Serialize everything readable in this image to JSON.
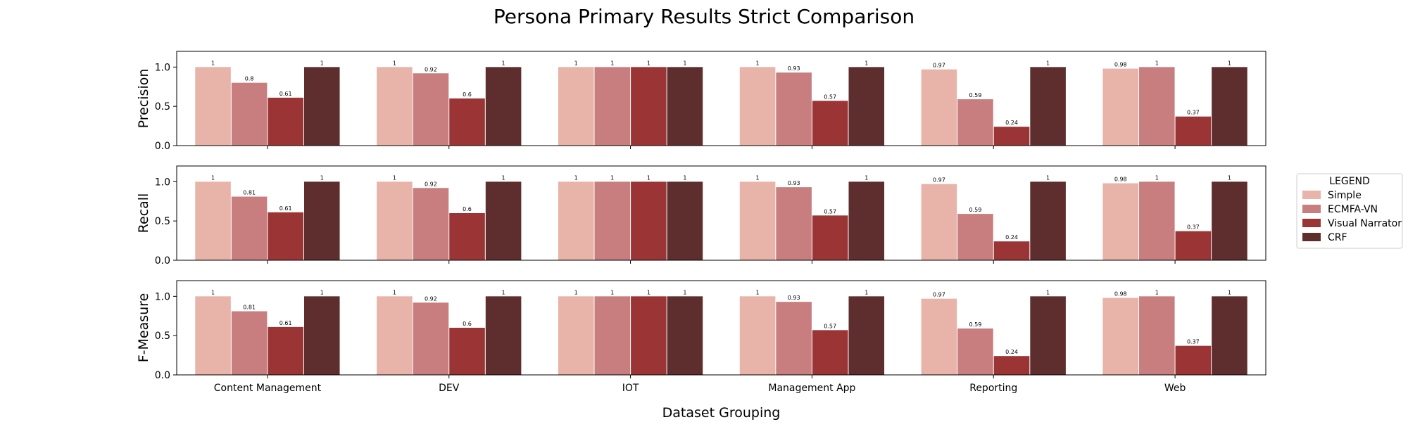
{
  "chart_data": {
    "type": "bar",
    "title": "Persona Primary Results Strict Comparison",
    "xlabel": "Dataset Grouping",
    "categories": [
      "Content Management",
      "DEV",
      "IOT",
      "Management App",
      "Reporting",
      "Web"
    ],
    "ylim": [
      0,
      1.2
    ],
    "yticks": [
      "0.0",
      "0.5",
      "1.0"
    ],
    "legend": {
      "title": "LEGEND",
      "placement": "right",
      "entries": [
        "Simple",
        "ECMFA-VN",
        "Visual Narrator",
        "CRF"
      ]
    },
    "series_colors": [
      "#e8b3a9",
      "#c87e7e",
      "#9b3535",
      "#5e2d2d"
    ],
    "panels": [
      {
        "ylabel": "Precision",
        "series": [
          {
            "name": "Simple",
            "values": [
              1,
              1,
              1,
              1,
              0.97,
              0.98
            ],
            "labels": [
              "1",
              "1",
              "1",
              "1",
              "0.97",
              "0.98"
            ]
          },
          {
            "name": "ECMFA-VN",
            "values": [
              0.8,
              0.92,
              1,
              0.93,
              0.59,
              1
            ],
            "labels": [
              "0.8",
              "0.92",
              "1",
              "0.93",
              "0.59",
              "1"
            ]
          },
          {
            "name": "Visual Narrator",
            "values": [
              0.61,
              0.6,
              1,
              0.57,
              0.24,
              0.37
            ],
            "labels": [
              "0.61",
              "0.6",
              "1",
              "0.57",
              "0.24",
              "0.37"
            ]
          },
          {
            "name": "CRF",
            "values": [
              1,
              1,
              1,
              1,
              1,
              1
            ],
            "labels": [
              "1",
              "1",
              "1",
              "1",
              "1",
              "1"
            ]
          }
        ]
      },
      {
        "ylabel": "Recall",
        "series": [
          {
            "name": "Simple",
            "values": [
              1,
              1,
              1,
              1,
              0.97,
              0.98
            ],
            "labels": [
              "1",
              "1",
              "1",
              "1",
              "0.97",
              "0.98"
            ]
          },
          {
            "name": "ECMFA-VN",
            "values": [
              0.81,
              0.92,
              1,
              0.93,
              0.59,
              1
            ],
            "labels": [
              "0.81",
              "0.92",
              "1",
              "0.93",
              "0.59",
              "1"
            ]
          },
          {
            "name": "Visual Narrator",
            "values": [
              0.61,
              0.6,
              1,
              0.57,
              0.24,
              0.37
            ],
            "labels": [
              "0.61",
              "0.6",
              "1",
              "0.57",
              "0.24",
              "0.37"
            ]
          },
          {
            "name": "CRF",
            "values": [
              1,
              1,
              1,
              1,
              1,
              1
            ],
            "labels": [
              "1",
              "1",
              "1",
              "1",
              "1",
              "1"
            ]
          }
        ]
      },
      {
        "ylabel": "F-Measure",
        "series": [
          {
            "name": "Simple",
            "values": [
              1,
              1,
              1,
              1,
              0.97,
              0.98
            ],
            "labels": [
              "1",
              "1",
              "1",
              "1",
              "0.97",
              "0.98"
            ]
          },
          {
            "name": "ECMFA-VN",
            "values": [
              0.81,
              0.92,
              1,
              0.93,
              0.59,
              1
            ],
            "labels": [
              "0.81",
              "0.92",
              "1",
              "0.93",
              "0.59",
              "1"
            ]
          },
          {
            "name": "Visual Narrator",
            "values": [
              0.61,
              0.6,
              1,
              0.57,
              0.24,
              0.37
            ],
            "labels": [
              "0.61",
              "0.6",
              "1",
              "0.57",
              "0.24",
              "0.37"
            ]
          },
          {
            "name": "CRF",
            "values": [
              1,
              1,
              1,
              1,
              1,
              1
            ],
            "labels": [
              "1",
              "1",
              "1",
              "1",
              "1",
              "1"
            ]
          }
        ]
      }
    ]
  }
}
